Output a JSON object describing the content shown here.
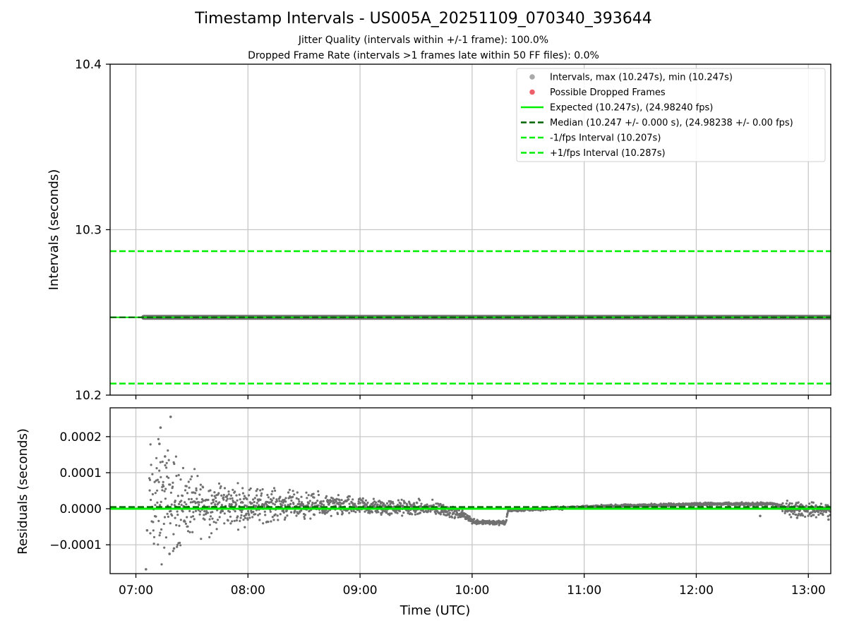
{
  "title": "Timestamp Intervals - US005A_20251109_070340_393644",
  "subtitle1": "Jitter Quality (intervals within +/-1 frame): 100.0%",
  "subtitle2": "Dropped Frame Rate (intervals >1 frames late within 50 FF files): 0.0%",
  "colors": {
    "intervals": "#707070",
    "intervals_legend": "#a9a9a9",
    "dropped": "#f0606a",
    "expected": "#00ee00",
    "median": "#006400",
    "bound": "#00ee00",
    "grid": "#c8c8c8"
  },
  "chart_data": [
    {
      "type": "scatter",
      "name": "intervals-panel",
      "ylabel": "Intervals (seconds)",
      "xlim_hours": [
        6.77,
        13.2
      ],
      "ylim": [
        10.2,
        10.4
      ],
      "y_ticks": [
        10.2,
        10.3,
        10.4
      ],
      "y_tick_labels": [
        "10.2",
        "10.3",
        "10.4"
      ],
      "grid": true,
      "legend_position": "top-right",
      "legend": [
        {
          "label": "Intervals, max (10.247s), min (10.247s)",
          "kind": "marker",
          "color_key": "intervals_legend"
        },
        {
          "label": "Possible Dropped Frames",
          "kind": "marker",
          "color_key": "dropped"
        },
        {
          "label": "Expected (10.247s), (24.98240 fps)",
          "kind": "solid",
          "color_key": "expected"
        },
        {
          "label": "Median (10.247 +/- 0.000 s), (24.98238 +/- 0.00 fps)",
          "kind": "dashed",
          "color_key": "median"
        },
        {
          "label": "-1/fps Interval (10.207s)",
          "kind": "dashed",
          "color_key": "bound"
        },
        {
          "label": "+1/fps Interval (10.287s)",
          "kind": "dashed",
          "color_key": "bound"
        }
      ],
      "intervals": {
        "value": 10.247,
        "start_hour": 7.07,
        "end_hour": 13.2
      },
      "expected": 10.247,
      "median": 10.247,
      "lower_bound": 10.207,
      "upper_bound": 10.287,
      "dropped_frames": []
    },
    {
      "type": "scatter",
      "name": "residuals-panel",
      "ylabel": "Residuals (seconds)",
      "xlabel": "Time (UTC)",
      "xlim_hours": [
        6.77,
        13.2
      ],
      "ylim": [
        -0.00018,
        0.00028
      ],
      "y_ticks": [
        -0.0001,
        0.0,
        0.0001,
        0.0002
      ],
      "y_tick_labels": [
        "−0.0001",
        "0.0000",
        "0.0001",
        "0.0002"
      ],
      "x_ticks": [
        7,
        8,
        9,
        10,
        11,
        12,
        13
      ],
      "x_tick_labels": [
        "07:00",
        "08:00",
        "09:00",
        "10:00",
        "11:00",
        "12:00",
        "13:00"
      ],
      "grid": true,
      "expected_residual": 0.0,
      "median_residual": 5e-06,
      "residual_trend": [
        {
          "hour": 7.07,
          "center": 1e-05,
          "spread": 0.00018
        },
        {
          "hour": 7.25,
          "center": 2e-05,
          "spread": 0.00016
        },
        {
          "hour": 7.5,
          "center": 1e-05,
          "spread": 9e-05
        },
        {
          "hour": 7.8,
          "center": 1e-05,
          "spread": 6e-05
        },
        {
          "hour": 8.3,
          "center": 1e-05,
          "spread": 4e-05
        },
        {
          "hour": 9.0,
          "center": 5e-06,
          "spread": 2.5e-05
        },
        {
          "hour": 9.7,
          "center": 0.0,
          "spread": 2e-05
        },
        {
          "hour": 9.95,
          "center": -2e-05,
          "spread": 1e-05
        },
        {
          "hour": 10.0,
          "center": -3.5e-05,
          "spread": 8e-06
        },
        {
          "hour": 10.3,
          "center": -4e-05,
          "spread": 6e-06
        },
        {
          "hour": 10.32,
          "center": -5e-06,
          "spread": 4e-06
        },
        {
          "hour": 11.0,
          "center": 5e-06,
          "spread": 4e-06
        },
        {
          "hour": 12.0,
          "center": 1.3e-05,
          "spread": 4e-06
        },
        {
          "hour": 12.7,
          "center": 1.3e-05,
          "spread": 4e-06
        },
        {
          "hour": 12.8,
          "center": 0.0,
          "spread": 2e-05
        },
        {
          "hour": 13.2,
          "center": -5e-06,
          "spread": 2e-05
        }
      ],
      "outliers": [
        {
          "hour": 7.09,
          "value": -0.000168
        },
        {
          "hour": 7.1,
          "value": -6e-05
        },
        {
          "hour": 7.22,
          "value": 0.000225
        },
        {
          "hour": 7.31,
          "value": 0.000255
        },
        {
          "hour": 7.21,
          "value": 0.00018
        },
        {
          "hour": 7.26,
          "value": 0.000145
        },
        {
          "hour": 7.3,
          "value": -0.000125
        },
        {
          "hour": 7.34,
          "value": -0.00011
        },
        {
          "hour": 12.57,
          "value": -2e-05
        },
        {
          "hour": 12.9,
          "value": -2.5e-05
        },
        {
          "hour": 13.18,
          "value": -3e-05
        }
      ]
    }
  ]
}
